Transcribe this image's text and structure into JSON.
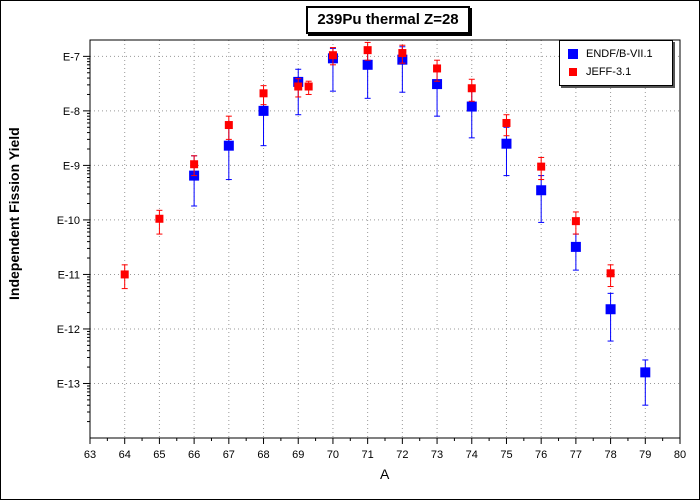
{
  "chart_data": {
    "type": "scatter",
    "title": "239Pu thermal Z=28",
    "xlabel": "A",
    "ylabel": "Independent Fission Yield",
    "xlim": [
      63,
      80
    ],
    "ylog": true,
    "ylim_exponents": [
      -14,
      -6.7
    ],
    "x_ticks": [
      "63",
      "64",
      "65",
      "66",
      "67",
      "68",
      "69",
      "70",
      "71",
      "72",
      "73",
      "74",
      "75",
      "76",
      "77",
      "78",
      "79",
      "80"
    ],
    "y_ticks": [
      "E-7",
      "E-8",
      "E-9",
      "E-10",
      "E-11",
      "E-12",
      "E-13"
    ],
    "y_tick_exponents": [
      -7,
      -8,
      -9,
      -10,
      -11,
      -12,
      -13
    ],
    "grid": true,
    "legend_position": "top-right",
    "series": [
      {
        "name": "ENDF/B-VII.1",
        "color": "#0000ff",
        "marker": "square-large",
        "points": [
          {
            "x": 66,
            "y": 6.5e-10,
            "lo": 1.8e-10,
            "hi": 1.5e-09
          },
          {
            "x": 67,
            "y": 2.3e-09,
            "lo": 5.5e-10,
            "hi": 5e-09
          },
          {
            "x": 68,
            "y": 1e-08,
            "lo": 2.3e-09,
            "hi": 2e-08
          },
          {
            "x": 69,
            "y": 3.4e-08,
            "lo": 8.5e-09,
            "hi": 5.8e-08
          },
          {
            "x": 70,
            "y": 9.2e-08,
            "lo": 2.3e-08,
            "hi": 1.4e-07
          },
          {
            "x": 71,
            "y": 7e-08,
            "lo": 1.7e-08,
            "hi": 1.4e-07
          },
          {
            "x": 72,
            "y": 8.7e-08,
            "lo": 2.2e-08,
            "hi": 1.5e-07
          },
          {
            "x": 73,
            "y": 3.1e-08,
            "lo": 8e-09,
            "hi": 5.8e-08
          },
          {
            "x": 74,
            "y": 1.2e-08,
            "lo": 3.2e-09,
            "hi": 2.4e-08
          },
          {
            "x": 75,
            "y": 2.5e-09,
            "lo": 6.5e-10,
            "hi": 5e-09
          },
          {
            "x": 76,
            "y": 3.5e-10,
            "lo": 9e-11,
            "hi": 6.5e-10
          },
          {
            "x": 77,
            "y": 3.2e-11,
            "lo": 1.2e-11,
            "hi": 5.5e-11
          },
          {
            "x": 78,
            "y": 2.3e-12,
            "lo": 6e-13,
            "hi": 4.5e-12
          },
          {
            "x": 79,
            "y": 1.6e-13,
            "lo": 4e-14,
            "hi": 2.7e-13
          }
        ]
      },
      {
        "name": "JEFF-3.1",
        "color": "#ff0000",
        "marker": "square-small",
        "points": [
          {
            "x": 64,
            "y": 1e-11,
            "lo": 5.5e-12,
            "hi": 1.5e-11
          },
          {
            "x": 65,
            "y": 1.05e-10,
            "lo": 5.5e-11,
            "hi": 1.5e-10
          },
          {
            "x": 66,
            "y": 1.05e-09,
            "lo": 6.5e-10,
            "hi": 1.5e-09
          },
          {
            "x": 67,
            "y": 5.5e-09,
            "lo": 3e-09,
            "hi": 8e-09
          },
          {
            "x": 68,
            "y": 2.1e-08,
            "lo": 1.3e-08,
            "hi": 2.9e-08
          },
          {
            "x": 69,
            "y": 2.8e-08,
            "lo": 1.8e-08,
            "hi": 3.9e-08
          },
          {
            "x": 69.3,
            "y": 2.8e-08,
            "lo": 2e-08,
            "hi": 3.5e-08
          },
          {
            "x": 70,
            "y": 1.05e-07,
            "lo": 7e-08,
            "hi": 1.45e-07
          },
          {
            "x": 71,
            "y": 1.3e-07,
            "lo": 8.5e-08,
            "hi": 1.8e-07
          },
          {
            "x": 72,
            "y": 1.15e-07,
            "lo": 7.5e-08,
            "hi": 1.6e-07
          },
          {
            "x": 73,
            "y": 6e-08,
            "lo": 3.5e-08,
            "hi": 8.5e-08
          },
          {
            "x": 74,
            "y": 2.6e-08,
            "lo": 1.5e-08,
            "hi": 3.8e-08
          },
          {
            "x": 75,
            "y": 6e-09,
            "lo": 3.5e-09,
            "hi": 8.5e-09
          },
          {
            "x": 76,
            "y": 9.5e-10,
            "lo": 5.5e-10,
            "hi": 1.4e-09
          },
          {
            "x": 77,
            "y": 9.5e-11,
            "lo": 5.5e-11,
            "hi": 1.4e-10
          },
          {
            "x": 78,
            "y": 1.05e-11,
            "lo": 6e-12,
            "hi": 1.5e-11
          }
        ]
      }
    ]
  }
}
